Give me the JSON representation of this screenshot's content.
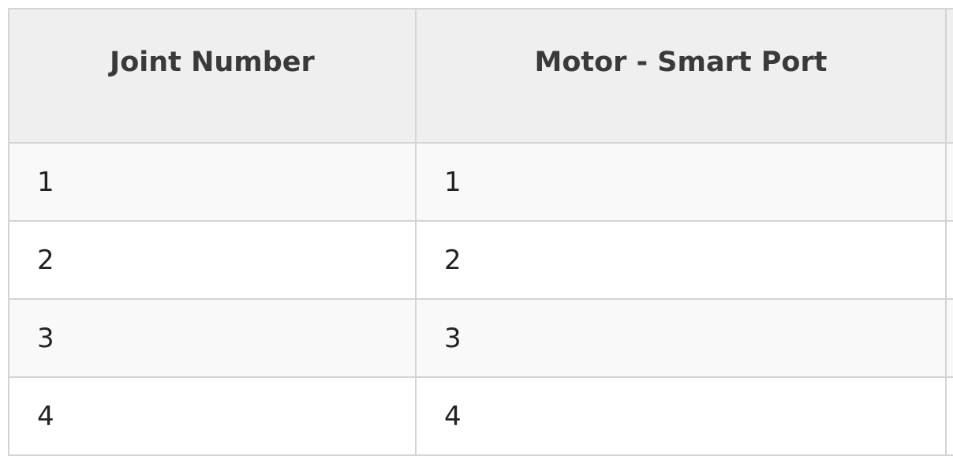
{
  "table": {
    "headers": [
      "Joint Number",
      "Motor - Smart Port",
      ""
    ],
    "rows": [
      [
        "1",
        "1",
        ""
      ],
      [
        "2",
        "2",
        ""
      ],
      [
        "3",
        "3",
        ""
      ],
      [
        "4",
        "4",
        ""
      ]
    ]
  }
}
